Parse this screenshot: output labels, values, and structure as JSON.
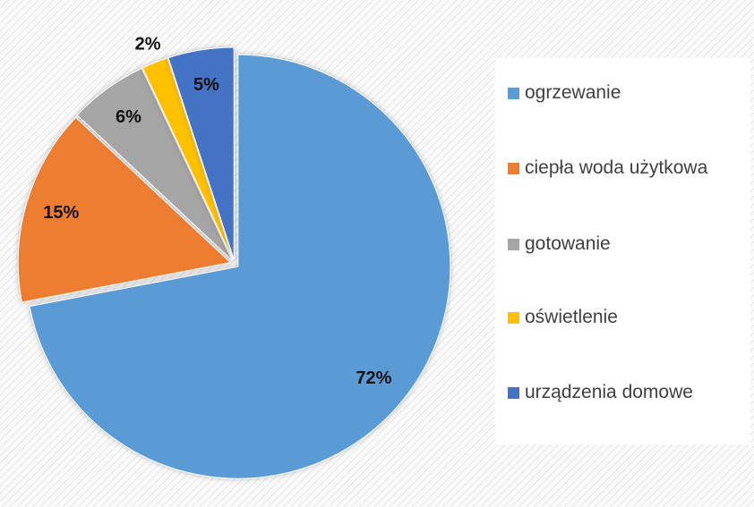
{
  "chart_data": {
    "type": "pie",
    "categories": [
      "ogrzewanie",
      "ciepła woda użytkowa",
      "gotowanie",
      "oświetlenie",
      "urządzenia domowe"
    ],
    "values": [
      72,
      15,
      6,
      2,
      5
    ],
    "value_labels": [
      "72%",
      "15%",
      "6%",
      "2%",
      "5%"
    ],
    "colors": [
      "#5b9bd5",
      "#ed7d31",
      "#a5a5a5",
      "#ffc000",
      "#4472c4"
    ],
    "legend": "right"
  }
}
